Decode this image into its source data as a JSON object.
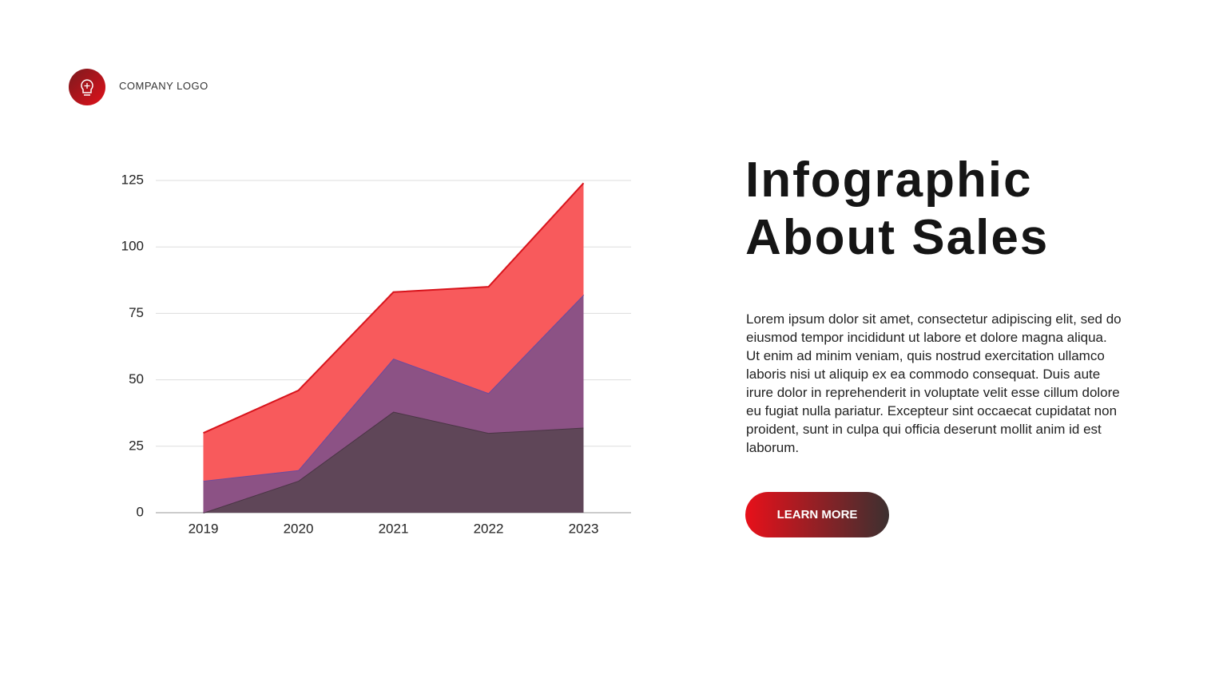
{
  "header": {
    "logo_text": "COMPANY LOGO"
  },
  "chart_data": {
    "type": "area",
    "stacked": true,
    "categories": [
      "2019",
      "2020",
      "2021",
      "2022",
      "2023"
    ],
    "series": [
      {
        "color": "#5f4658",
        "line_color": "#4a3545",
        "values": [
          0,
          12,
          38,
          30,
          32
        ]
      },
      {
        "color": "#8c5285",
        "line_color": "#6a4aa0",
        "values": [
          12,
          4,
          20,
          15,
          50
        ]
      },
      {
        "color": "#f85a5c",
        "line_color": "#d8141c",
        "values": [
          18,
          30,
          25,
          40,
          42
        ]
      }
    ],
    "ylim": [
      0,
      125
    ],
    "yticks": [
      0,
      25,
      50,
      75,
      100,
      125
    ],
    "grid": true
  },
  "content": {
    "title": "Infographic About Sales",
    "body": "Lorem ipsum dolor sit amet, consectetur adipiscing  elit, sed do eiusmod tempor incididunt  ut labore et dolore magna aliqua. Ut enim ad minim veniam, quis nostrud exercitation  ullamco laboris nisi ut aliquip  ex ea commodo consequat. Duis aute irure dolor in reprehenderit in voluptate velit esse cillum dolore eu fugiat nulla pariatur. Excepteur sint occaecat cupidatat non proident, sunt in culpa qui officia deserunt mollit anim id est laborum.",
    "button": "LEARN MORE"
  }
}
